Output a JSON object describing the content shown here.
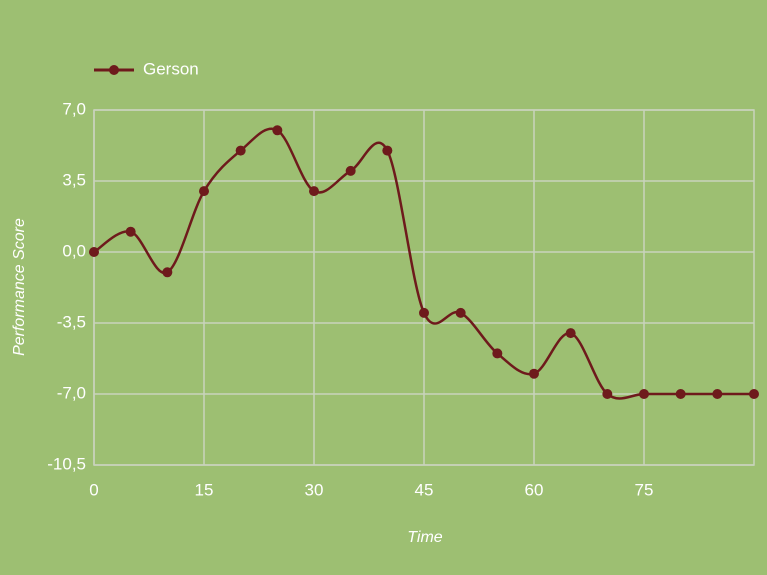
{
  "chart_data": {
    "type": "line",
    "x_label": "Time",
    "y_label": "Performance Score",
    "x": [
      0,
      5,
      10,
      15,
      20,
      25,
      30,
      35,
      40,
      45,
      50,
      55,
      60,
      65,
      70,
      75,
      80,
      85,
      90
    ],
    "series": [
      {
        "name": "Gerson",
        "color": "#6e1a1c",
        "values": [
          0,
          1,
          -1,
          3,
          5,
          6,
          3,
          4,
          5,
          -3,
          -3,
          -5,
          -6,
          -4,
          -7,
          -7,
          -7,
          -7,
          -7
        ]
      }
    ],
    "xlim": [
      0,
      90
    ],
    "xticks": [
      0,
      15,
      30,
      45,
      60,
      75
    ],
    "ylim": [
      -10.5,
      7
    ],
    "yticks": [
      {
        "value": 7,
        "label": "7,0"
      },
      {
        "value": 3.5,
        "label": "3,5"
      },
      {
        "value": 0,
        "label": "0,0"
      },
      {
        "value": -3.5,
        "label": "-3,5"
      },
      {
        "value": -7,
        "label": "-7,0"
      },
      {
        "value": -10.5,
        "label": "-10,5"
      }
    ],
    "grid": true,
    "legend": "top-left"
  }
}
